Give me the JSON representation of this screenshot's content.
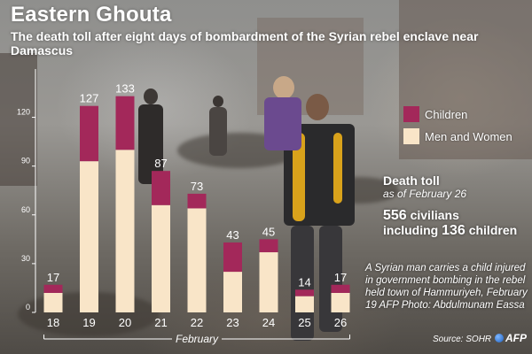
{
  "title": "Eastern Ghouta",
  "subtitle": "The death toll after eight days of bombardment of the Syrian rebel enclave near Damascus",
  "legend": {
    "children": "Children",
    "men_women": "Men and Women"
  },
  "death_toll": {
    "heading": "Death toll",
    "as_of": "as of February 26",
    "civilians_number": "556",
    "civilians_word": "civilians",
    "including_word": "including",
    "children_number": "136",
    "children_word": "children"
  },
  "caption": "A Syrian man carries a child injured in government bombing in the rebel held town of Hammuriyeh, February 19 AFP Photo: Abdulmunam Eassa",
  "source": "Source: SOHR",
  "logo_text": "AFP",
  "colors": {
    "children": "#a3285a",
    "men_women": "#f9e5c8",
    "axis": "#ffffff"
  },
  "chart_data": {
    "type": "bar",
    "stacked": true,
    "categories": [
      "18",
      "19",
      "20",
      "21",
      "22",
      "23",
      "24",
      "25",
      "26"
    ],
    "x_axis_label": "February",
    "series": [
      {
        "name": "Men and Women",
        "values": [
          12,
          93,
          100,
          66,
          64,
          25,
          37,
          10,
          12
        ]
      },
      {
        "name": "Children",
        "values": [
          5,
          34,
          33,
          21,
          9,
          18,
          8,
          4,
          5
        ]
      }
    ],
    "totals": [
      17,
      127,
      133,
      87,
      73,
      43,
      45,
      14,
      17
    ],
    "yticks": [
      0,
      30,
      60,
      90,
      120
    ],
    "ylim": [
      0,
      135
    ],
    "grid": false
  }
}
